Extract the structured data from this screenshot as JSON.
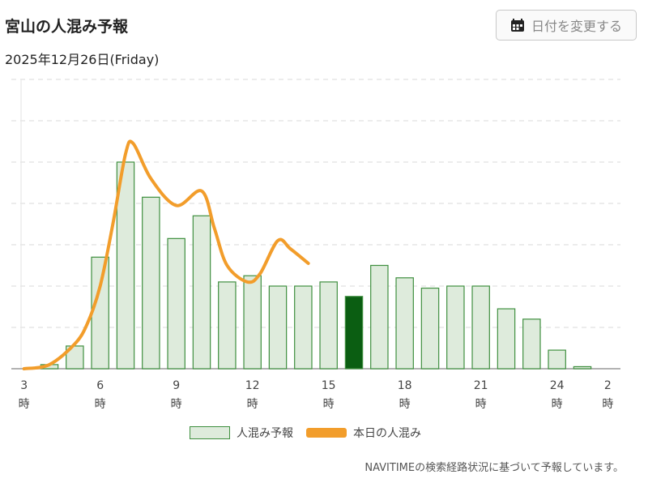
{
  "header": {
    "title": "宮山の人混み予報",
    "date": "2025年12月26日(Friday)",
    "change_date_label": "日付を変更する",
    "change_date_icon": "calendar-icon"
  },
  "chart_data": {
    "type": "bar",
    "x_tick_labels": [
      {
        "num": "3",
        "unit": "時"
      },
      {
        "num": "6",
        "unit": "時"
      },
      {
        "num": "9",
        "unit": "時"
      },
      {
        "num": "12",
        "unit": "時"
      },
      {
        "num": "15",
        "unit": "時"
      },
      {
        "num": "18",
        "unit": "時"
      },
      {
        "num": "21",
        "unit": "時"
      },
      {
        "num": "24",
        "unit": "時"
      },
      {
        "num": "2",
        "unit": "時"
      }
    ],
    "x_tick_positions": [
      3,
      6,
      9,
      12,
      15,
      18,
      21,
      24,
      26
    ],
    "xlim": [
      2.5,
      26.5
    ],
    "ylim": [
      0,
      7
    ],
    "grid_lines": 7,
    "grid": true,
    "current_hour": 16,
    "series": [
      {
        "name": "人混み予報",
        "kind": "bar",
        "x": [
          4,
          5,
          6,
          7,
          8,
          9,
          10,
          11,
          12,
          13,
          14,
          15,
          16,
          17,
          18,
          19,
          20,
          21,
          22,
          23,
          24,
          25
        ],
        "values": [
          0.1,
          0.55,
          2.7,
          5.0,
          4.15,
          3.15,
          3.7,
          2.1,
          2.25,
          2.0,
          2.0,
          2.1,
          1.75,
          2.5,
          2.2,
          1.95,
          2.0,
          2.0,
          1.45,
          1.2,
          0.45,
          0.05
        ]
      },
      {
        "name": "本日の人混み",
        "kind": "line",
        "x": [
          3,
          4,
          5,
          5.5,
          6,
          6.5,
          7,
          7.3,
          8,
          9,
          10,
          10.5,
          11,
          11.8,
          12.3,
          13,
          13.5,
          14.2
        ],
        "values": [
          0.0,
          0.1,
          0.6,
          1.1,
          2.0,
          3.5,
          5.2,
          5.45,
          4.6,
          3.95,
          4.3,
          3.4,
          2.5,
          2.1,
          2.3,
          3.1,
          2.9,
          2.55
        ]
      }
    ],
    "colors": {
      "bar_fill": "#deebdc",
      "bar_stroke": "#3f8f3f",
      "bar_highlight": "#0b5e12",
      "line": "#f29d2b",
      "grid": "#d9d9d9",
      "axis": "#999999"
    },
    "legend_position": "bottom-center"
  },
  "footnote": "NAVITIMEの検索経路状況に基づいて予報しています。"
}
